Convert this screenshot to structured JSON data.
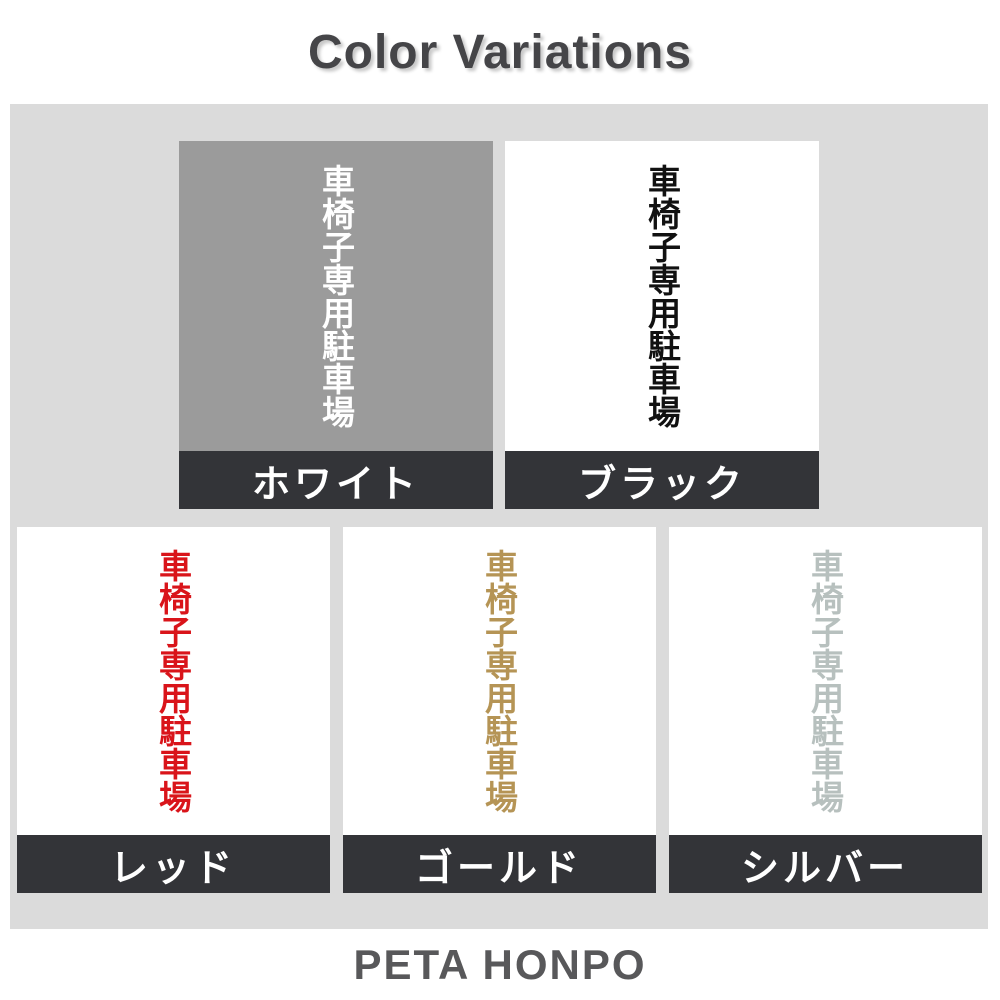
{
  "header": {
    "title": "Color Variations"
  },
  "sticker_text": "車椅子専用駐車場",
  "footer": {
    "brand": "PETA HONPO"
  },
  "theme": {
    "page_bg": "#ffffff",
    "panel_bg": "#dbdbdb",
    "label_bar_bg": "#333438",
    "label_text_color": "#ffffff",
    "title_color": "#454548",
    "brand_color": "#58585a"
  },
  "swatches": [
    {
      "name": "white",
      "label": "ホワイト",
      "swatch_bg": "#9b9b9b",
      "text_color": "#ffffff"
    },
    {
      "name": "black",
      "label": "ブラック",
      "swatch_bg": "#ffffff",
      "text_color": "#111111"
    },
    {
      "name": "red",
      "label": "レッド",
      "swatch_bg": "#ffffff",
      "text_color": "#d9141a"
    },
    {
      "name": "gold",
      "label": "ゴールド",
      "swatch_bg": "#ffffff",
      "text_color": "#b59455"
    },
    {
      "name": "silver",
      "label": "シルバー",
      "swatch_bg": "#ffffff",
      "text_color": "#b7c0be"
    }
  ]
}
